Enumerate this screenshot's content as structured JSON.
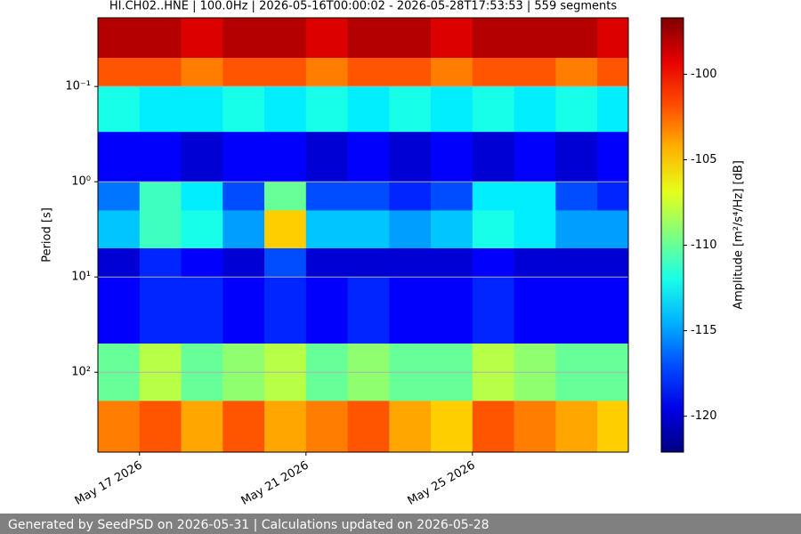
{
  "chart_data": {
    "type": "heatmap",
    "title": "HI.CH02..HNE | 100.0Hz | 2026-05-16T00:00:02 - 2026-05-28T17:53:53 | 559 segments",
    "ylabel": "Period [s]",
    "colorbar_label": "Amplitude [m²/s⁴/Hz] [dB]",
    "x": [
      "2026-05-16",
      "2026-05-17",
      "2026-05-18",
      "2026-05-19",
      "2026-05-20",
      "2026-05-21",
      "2026-05-22",
      "2026-05-23",
      "2026-05-24",
      "2026-05-25",
      "2026-05-26",
      "2026-05-27",
      "2026-05-28"
    ],
    "xlim": [
      "2026-05-16T00:00:02",
      "2026-05-28T17:53:53"
    ],
    "xticks": [
      {
        "value": "2026-05-17",
        "label": "May 17 2026"
      },
      {
        "value": "2026-05-21",
        "label": "May 21 2026"
      },
      {
        "value": "2026-05-25",
        "label": "May 25 2026"
      }
    ],
    "period_edges": [
      0.019,
      0.05,
      0.1,
      0.3,
      1,
      2,
      5,
      10,
      50,
      200,
      690
    ],
    "ylim": [
      0.019,
      690
    ],
    "log_y": true,
    "y_inverted": true,
    "yticks": [
      {
        "value": 0.1,
        "label": "10⁻¹"
      },
      {
        "value": 1,
        "label": "10⁰"
      },
      {
        "value": 10,
        "label": "10¹"
      },
      {
        "value": 100,
        "label": "10²"
      }
    ],
    "grid": true,
    "colormap": "jet",
    "clim": [
      -122.1,
      -96.7
    ],
    "cticks": [
      -120,
      -115,
      -110,
      -105,
      -100
    ],
    "values": [
      [
        -98,
        -98,
        -99,
        -98,
        -98,
        -99,
        -98,
        -98,
        -99,
        -98,
        -98,
        -98,
        -99
      ],
      [
        -102,
        -102,
        -103,
        -102,
        -102,
        -103,
        -102,
        -102,
        -103,
        -102,
        -102,
        -103,
        -102
      ],
      [
        -112,
        -113,
        -113,
        -112,
        -113,
        -112,
        -113,
        -112,
        -113,
        -112,
        -113,
        -112,
        -113
      ],
      [
        -119,
        -119,
        -120,
        -119,
        -119,
        -120,
        -119,
        -120,
        -119,
        -120,
        -119,
        -120,
        -119
      ],
      [
        -116,
        -111,
        -113,
        -117,
        -110,
        -117,
        -117,
        -118,
        -117,
        -113,
        -113,
        -117,
        -118
      ],
      [
        -114,
        -111,
        -112,
        -115,
        -105,
        -114,
        -114,
        -115,
        -114,
        -112,
        -113,
        -115,
        -115
      ],
      [
        -120,
        -118,
        -119,
        -120,
        -117,
        -120,
        -120,
        -120,
        -120,
        -119,
        -120,
        -120,
        -120
      ],
      [
        -119,
        -118,
        -118,
        -119,
        -118,
        -119,
        -118,
        -119,
        -119,
        -118,
        -119,
        -119,
        -119
      ],
      [
        -110,
        -108,
        -110,
        -109,
        -108,
        -110,
        -109,
        -110,
        -110,
        -108,
        -109,
        -110,
        -110
      ],
      [
        -103,
        -102,
        -104,
        -102,
        -104,
        -103,
        -102,
        -104,
        -105,
        -102,
        -103,
        -104,
        -105
      ]
    ]
  },
  "footer": "Generated by SeedPSD on 2026-05-31 | Calculations updated on 2026-05-28"
}
